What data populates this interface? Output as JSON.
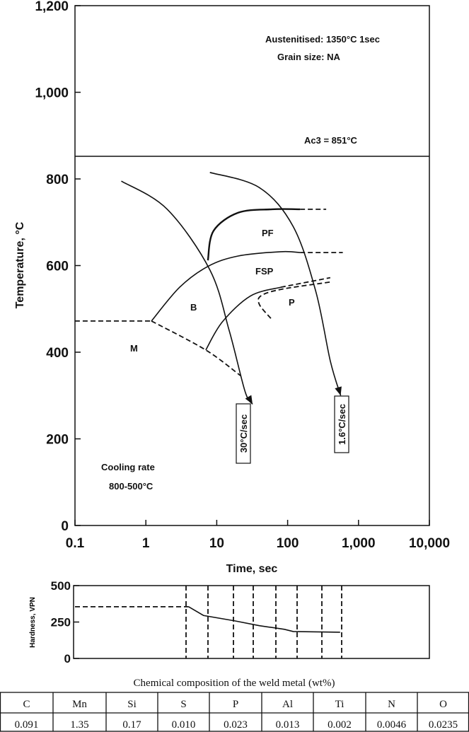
{
  "chart_data": {
    "type": "line",
    "title": "",
    "xlabel": "Time, sec",
    "ylabel": "Temperature, °C",
    "x_scale": "log",
    "xlim": [
      0.1,
      10000
    ],
    "ylim": [
      0,
      1200
    ],
    "x_ticks": [
      "0.1",
      "1",
      "10",
      "100",
      "1,000",
      "10,000"
    ],
    "y_ticks": [
      "0",
      "200",
      "400",
      "600",
      "800",
      "1,000",
      "1,200"
    ],
    "annotations": {
      "austenitised": "Austenitised: 1350°C 1sec",
      "grain_size": "Grain size: NA",
      "ac3": "Ac3  = 851°C",
      "cooling_rate_1": "Cooling rate",
      "cooling_rate_2": "800-500°C"
    },
    "ac3_temperature": 851,
    "regions": [
      "PF",
      "FSP",
      "P",
      "B",
      "M"
    ],
    "cooling_curves": [
      {
        "name": "30°C/sec",
        "points": [
          [
            0.45,
            795
          ],
          [
            2,
            730
          ],
          [
            8,
            590
          ],
          [
            15,
            450
          ],
          [
            25,
            310
          ],
          [
            32,
            280
          ]
        ]
      },
      {
        "name": "1.6°C/sec",
        "points": [
          [
            8,
            815
          ],
          [
            40,
            780
          ],
          [
            120,
            690
          ],
          [
            250,
            540
          ],
          [
            400,
            380
          ],
          [
            560,
            300
          ]
        ]
      }
    ],
    "transformation_lines": [
      {
        "name": "M-start",
        "style": "dashed",
        "points": [
          [
            0.1,
            472
          ],
          [
            1.2,
            472
          ]
        ]
      },
      {
        "name": "M-boundary",
        "style": "dashed",
        "points": [
          [
            1.2,
            472
          ],
          [
            7,
            405
          ],
          [
            22,
            345
          ]
        ]
      },
      {
        "name": "B-start",
        "style": "solid",
        "points": [
          [
            1.2,
            472
          ],
          [
            3,
            550
          ],
          [
            7.5,
            598
          ],
          [
            20,
            622
          ],
          [
            80,
            632
          ],
          [
            150,
            630
          ]
        ]
      },
      {
        "name": "B-start-ext",
        "style": "dashed",
        "points": [
          [
            150,
            630
          ],
          [
            600,
            630
          ]
        ]
      },
      {
        "name": "PF-start",
        "style": "bold",
        "points": [
          [
            7.5,
            612
          ],
          [
            9,
            680
          ],
          [
            20,
            722
          ],
          [
            60,
            730
          ],
          [
            150,
            730
          ]
        ]
      },
      {
        "name": "PF-start-ext",
        "style": "dashed",
        "points": [
          [
            150,
            730
          ],
          [
            350,
            730
          ]
        ]
      },
      {
        "name": "P-start",
        "style": "solid",
        "points": [
          [
            7,
            405
          ],
          [
            12,
            470
          ],
          [
            30,
            530
          ],
          [
            80,
            550
          ]
        ]
      },
      {
        "name": "P-start-ext",
        "style": "dashed",
        "points": [
          [
            80,
            550
          ],
          [
            400,
            572
          ]
        ]
      },
      {
        "name": "P-finish",
        "style": "dashed",
        "points": [
          [
            58,
            478
          ],
          [
            40,
            510
          ],
          [
            42,
            530
          ],
          [
            80,
            545
          ],
          [
            400,
            562
          ]
        ]
      }
    ],
    "hardness": {
      "ylabel": "Hardness, VPN",
      "ylim": [
        0,
        500
      ],
      "y_ticks": [
        "0",
        "250",
        "500"
      ],
      "points": [
        [
          0.1,
          355
        ],
        [
          4,
          355
        ],
        [
          6.5,
          295
        ],
        [
          18,
          258
        ],
        [
          40,
          225
        ],
        [
          90,
          200
        ],
        [
          120,
          185
        ],
        [
          550,
          180
        ]
      ]
    }
  },
  "composition_table": {
    "title": "Chemical composition of the weld metal (wt%)",
    "headers": [
      "C",
      "Mn",
      "Si",
      "S",
      "P",
      "Al",
      "Ti",
      "N",
      "O"
    ],
    "values": [
      "0.091",
      "1.35",
      "0.17",
      "0.010",
      "0.023",
      "0.013",
      "0.002",
      "0.0046",
      "0.0235"
    ]
  }
}
